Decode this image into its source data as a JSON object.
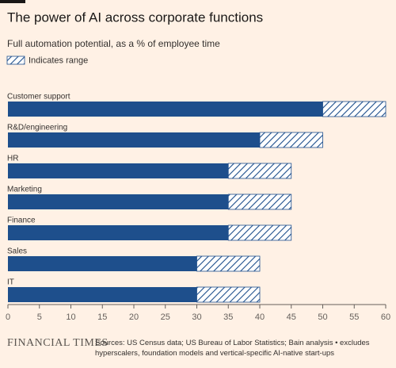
{
  "logo": "FINANCIAL TIMES",
  "chart_data": {
    "type": "stacked-barh",
    "title": "The power of AI across corporate functions",
    "subtitle": "Full automation potential, as a % of employee time",
    "source": "Sources: US Census data; US Bureau of Labor Statistics; Bain analysis • excludes hyperscalers, foundation models and vertical-specific AI-native start-ups",
    "categories": [
      "Customer support",
      "R&D/engineering",
      "HR",
      "Marketing",
      "Finance",
      "Sales",
      "IT"
    ],
    "series": [
      {
        "color": "#1e4f8c",
        "values": [
          50,
          40,
          35,
          35,
          35,
          30,
          30
        ]
      },
      {
        "name": "Indicates range",
        "color": "#1e4f8c",
        "hatched": true,
        "values": [
          10,
          10,
          10,
          10,
          10,
          10,
          10
        ]
      }
    ],
    "xlim": [
      0,
      60
    ],
    "xticks": [
      0,
      5,
      10,
      15,
      20,
      25,
      30,
      35,
      40,
      45,
      50,
      55,
      60
    ],
    "grid": false
  }
}
